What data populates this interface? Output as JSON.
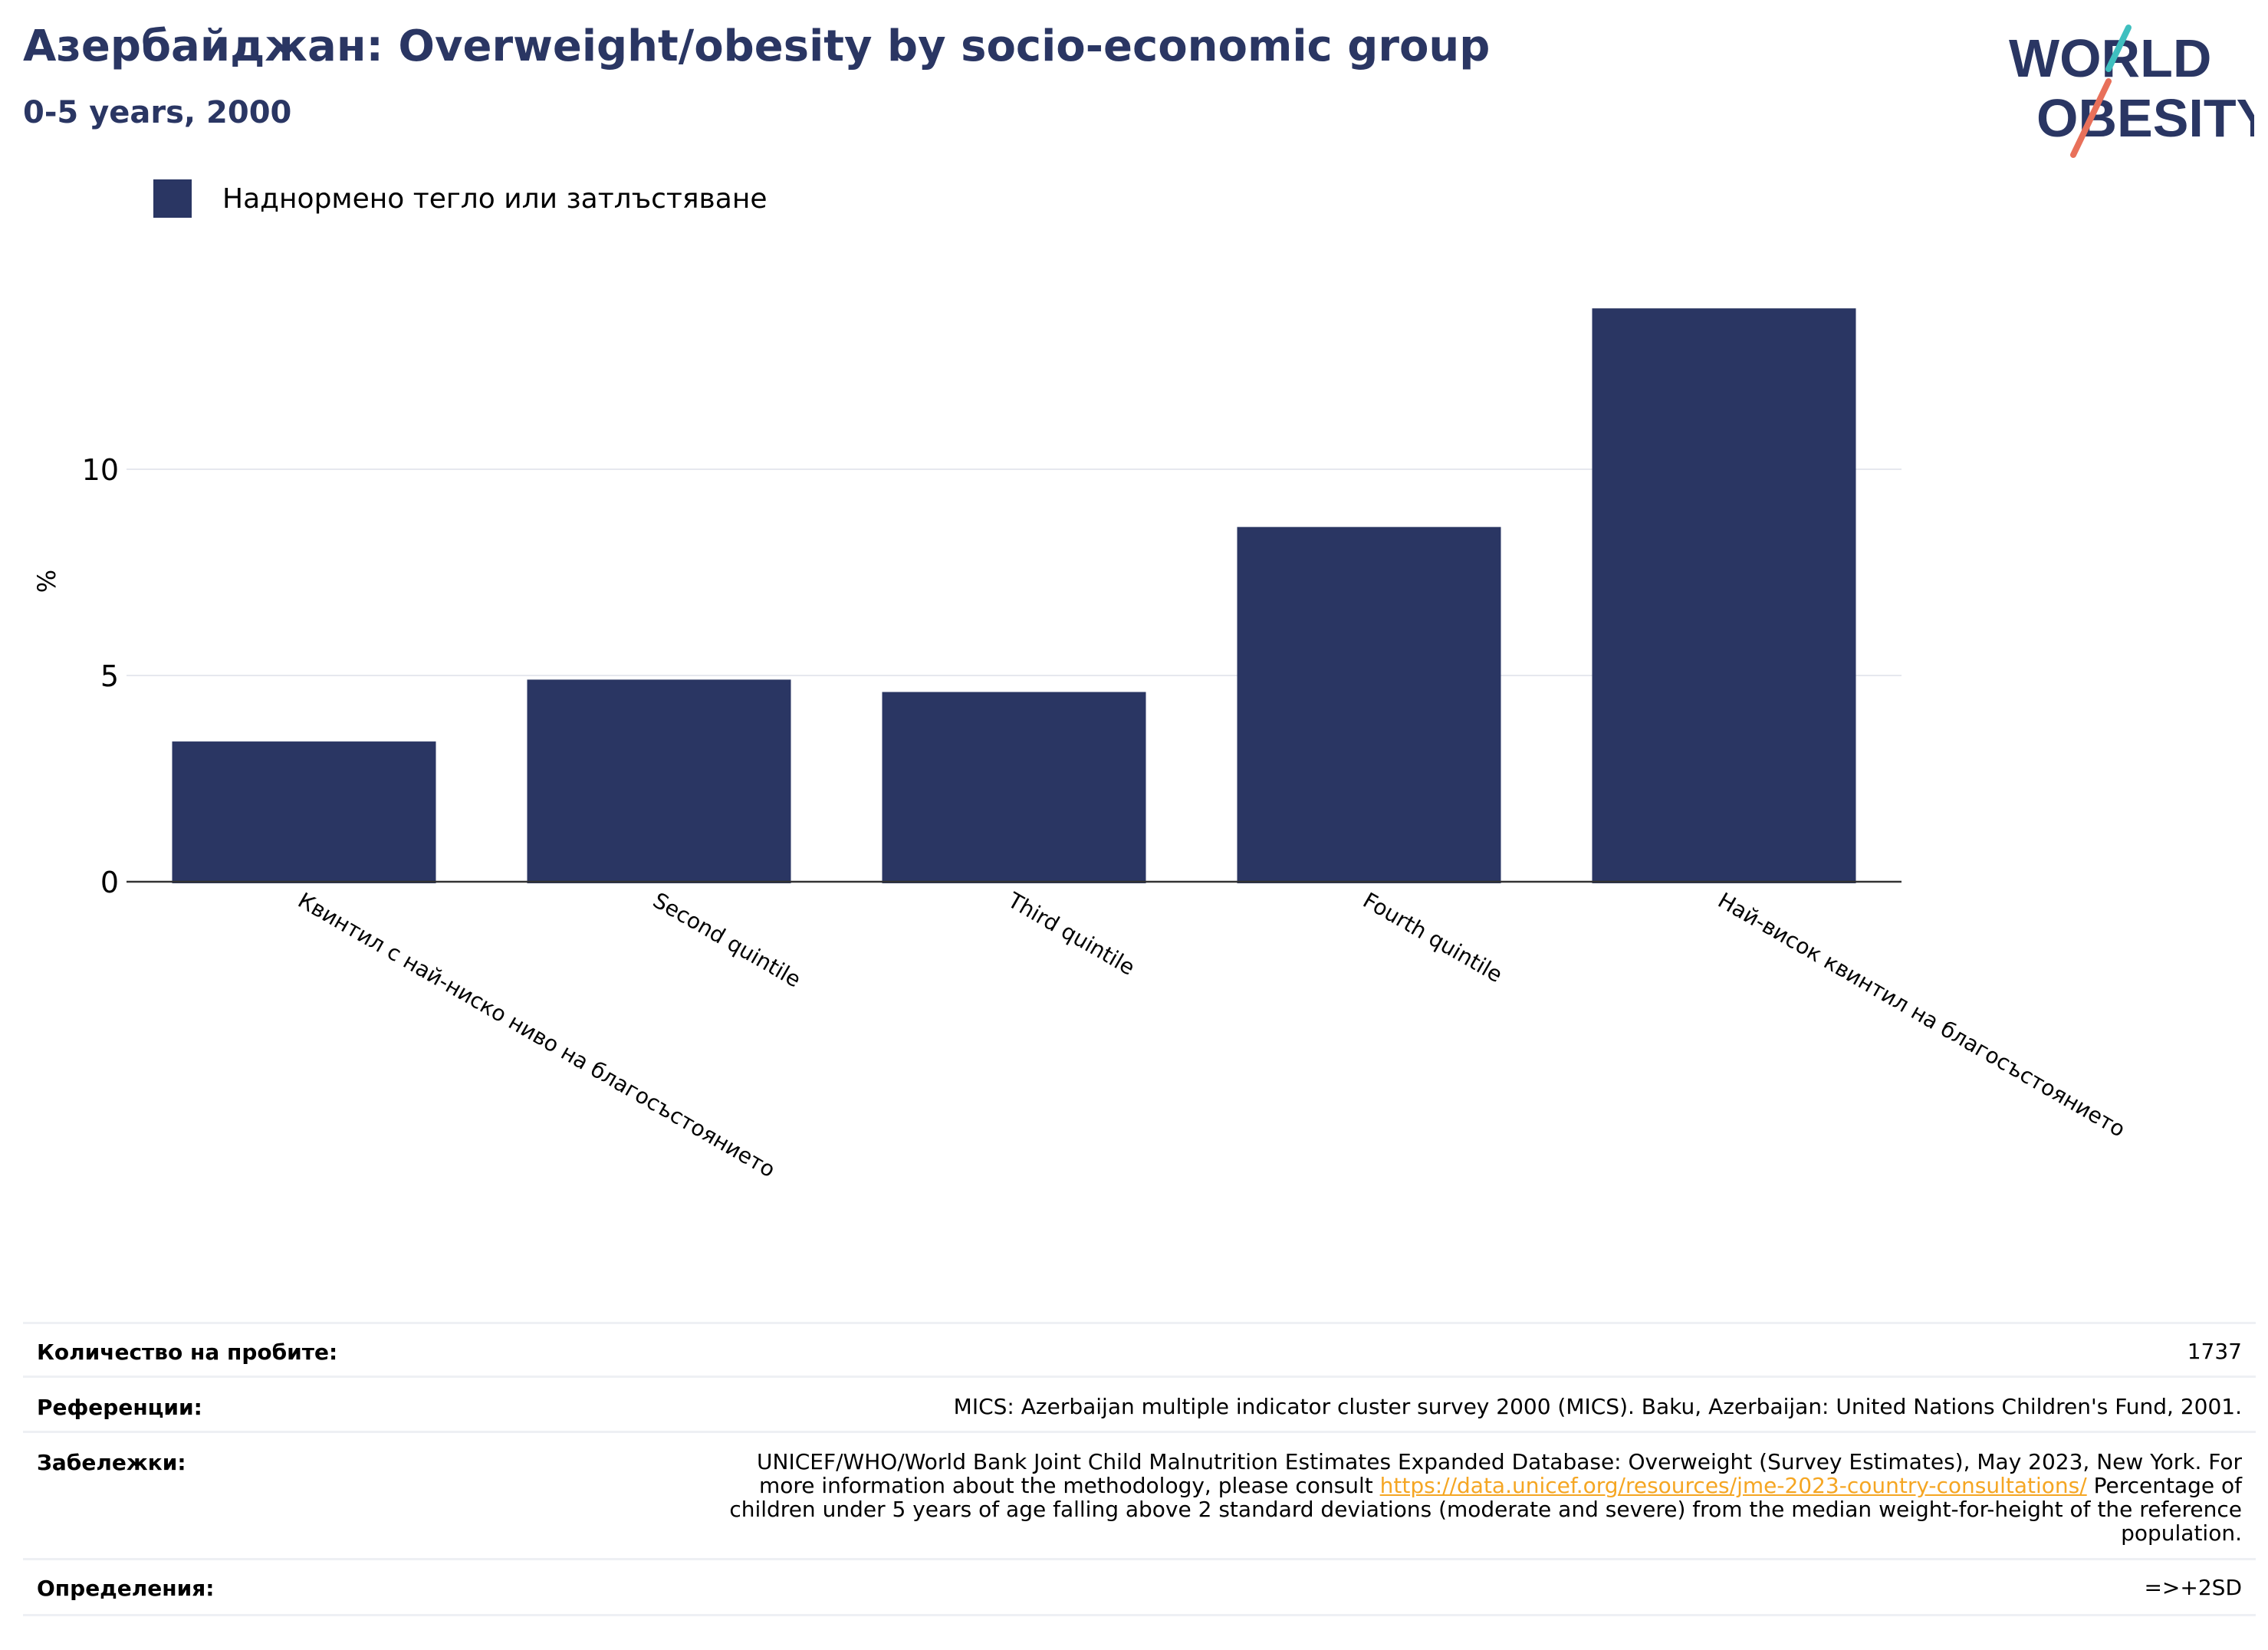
{
  "header": {
    "title": "Азербайджан: Overweight/obesity by socio-economic group",
    "subtitle": "0-5 years, 2000"
  },
  "logo": {
    "line1": "WORLD",
    "line2": "OBESITY"
  },
  "colors": {
    "bar": "#2a3663",
    "title": "#2a3663",
    "link": "#f5a623",
    "logo_teal": "#3fbfbf",
    "logo_coral": "#e8705a"
  },
  "chart_data": {
    "type": "bar",
    "categories": [
      "Квинтил с най-ниско ниво на благосъстоянието",
      "Second quintile",
      "Third quintile",
      "Fourth quintile",
      "Най-висок квинтил на благосъстоянието"
    ],
    "series": [
      {
        "name": "Наднормено тегло или затлъстяване",
        "values": [
          3.4,
          4.9,
          4.6,
          8.6,
          13.9
        ]
      }
    ],
    "ylabel": "%",
    "xlabel": "",
    "yticks": [
      0,
      5,
      10
    ],
    "ylim": [
      0,
      15
    ],
    "grid": true,
    "legend": "top-left"
  },
  "footer": {
    "rows": [
      {
        "label": "Количество на пробите:",
        "value": "1737"
      },
      {
        "label": "Референции:",
        "value": "MICS: Azerbaijan multiple indicator cluster survey 2000 (MICS). Baku, Azerbaijan: United Nations Children's Fund, 2001."
      },
      {
        "label": "Забележки:",
        "lines": [
          "UNICEF/WHO/World Bank Joint Child Malnutrition Estimates Expanded Database: Overweight (Survey Estimates), May 2023, New York. For",
          "children under 5 years of age falling above 2 standard deviations (moderate and severe) from the median weight-for-height of the reference",
          "population."
        ],
        "pre_link": "more information about the methodology, please consult ",
        "link": "https://data.unicef.org/resources/jme-2023-country-consultations/",
        "post_link": " Percentage of"
      },
      {
        "label": "Определения:",
        "value": "=>+2SD"
      }
    ]
  }
}
